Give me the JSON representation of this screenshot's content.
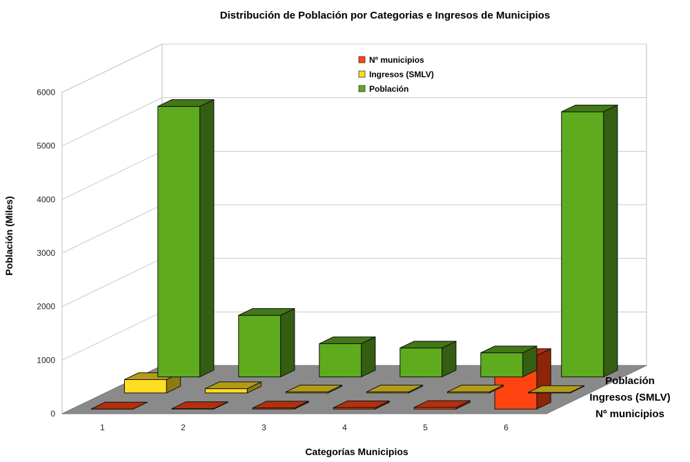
{
  "chart_data": {
    "type": "bar",
    "title": "Distribución de Población por Categorias e Ingresos de Municipios",
    "xlabel": "Categorías Municipios",
    "ylabel": "Población (Miles)",
    "categories": [
      "1",
      "2",
      "3",
      "4",
      "5",
      "6"
    ],
    "y_ticks": [
      "0",
      "1000",
      "2000",
      "3000",
      "4000",
      "5000",
      "6000"
    ],
    "ylim": [
      0,
      6000
    ],
    "series": [
      {
        "name": "Nº municipios",
        "color": "#ff4411",
        "values": [
          2,
          8,
          20,
          25,
          30,
          1000
        ]
      },
      {
        "name": "Ingresos (SMLV)",
        "color": "#ffdd22",
        "values": [
          250,
          80,
          20,
          20,
          20,
          10
        ]
      },
      {
        "name": "Población",
        "color": "#5eab1e",
        "values": [
          5050,
          1150,
          620,
          540,
          450,
          4950
        ]
      }
    ],
    "depth_labels": [
      "Población",
      "Ingresos (SMLV)",
      "Nº municipios"
    ],
    "legend_position": "top-center",
    "grid": true
  }
}
